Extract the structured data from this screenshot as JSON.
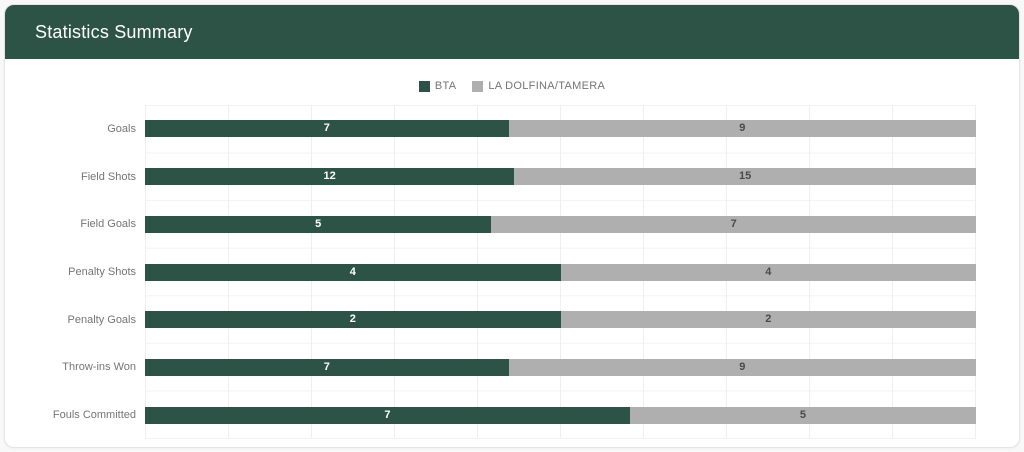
{
  "header": {
    "title": "Statistics Summary"
  },
  "colors": {
    "header_bg": "#2D5347",
    "bta_green": "#2D5347",
    "opponent_gray": "#AFAFAF",
    "value_on_green": "#FFFFFF",
    "value_on_gray": "#4A4A4A",
    "label_gray": "#757575"
  },
  "legend": [
    {
      "label": "BTA",
      "color": "#2D5347"
    },
    {
      "label": "LA DOLFINA/TAMERA",
      "color": "#AFAFAF"
    }
  ],
  "chart_data": {
    "type": "bar",
    "orientation": "horizontal",
    "stacked": "percent",
    "title": "Statistics Summary",
    "grid": true,
    "legend_position": "top",
    "categories": [
      "Goals",
      "Field Shots",
      "Field Goals",
      "Penalty Shots",
      "Penalty Goals",
      "Throw-ins Won",
      "Fouls Committed"
    ],
    "series": [
      {
        "name": "BTA",
        "color": "#2D5347",
        "text_color": "#FFFFFF",
        "values": [
          7,
          12,
          5,
          4,
          2,
          7,
          7
        ]
      },
      {
        "name": "LA DOLFINA/TAMERA",
        "color": "#AFAFAF",
        "text_color": "#4A4A4A",
        "values": [
          9,
          15,
          7,
          4,
          2,
          9,
          5
        ]
      }
    ]
  }
}
